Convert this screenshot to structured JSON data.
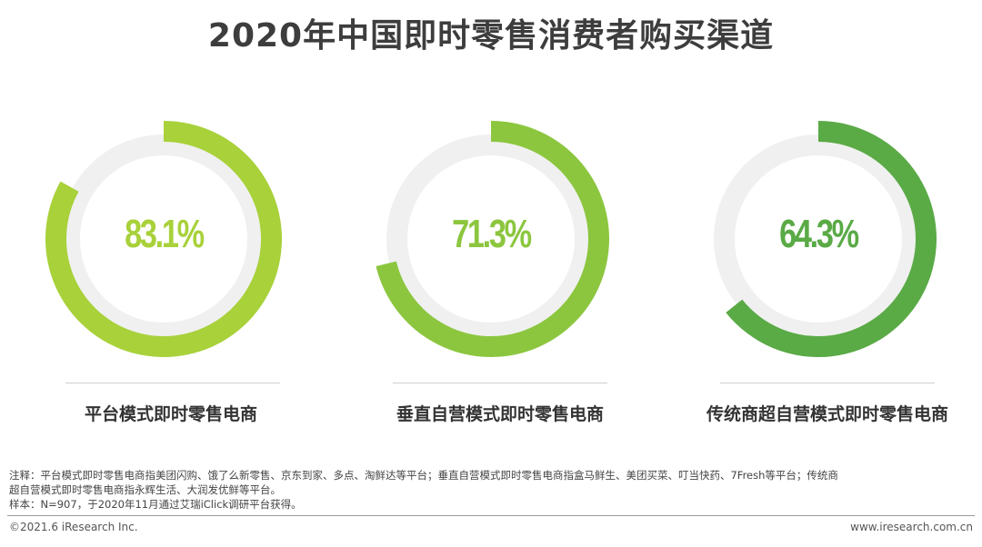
{
  "chart_data": {
    "type": "pie",
    "title": "2020年中国即时零售消费者购买渠道",
    "unit": "%",
    "series": [
      {
        "label": "平台模式即时零售电商",
        "value": 83.1,
        "value_label": "83.1%",
        "color": "#a8d13a"
      },
      {
        "label": "垂直自营模式即时零售电商",
        "value": 71.3,
        "value_label": "71.3%",
        "color": "#8cc63f"
      },
      {
        "label": "传统商超自营模式即时零售电商",
        "value": 64.3,
        "value_label": "64.3%",
        "color": "#5aaa46"
      }
    ],
    "track_color": "#f0f0f0"
  },
  "notes": {
    "line1": "注释：平台模式即时零售电商指美团闪购、饿了么新零售、京东到家、多点、淘鲜达等平台；垂直自营模式即时零售电商指盒马鲜生、美团买菜、叮当快药、7Fresh等平台；传统商",
    "line2": "超自营模式即时零售电商指永辉生活、大润发优鲜等平台。",
    "line3": "样本：N=907，于2020年11月通过艾瑞iClick调研平台获得。"
  },
  "footer": {
    "copyright": "©2021.6 iResearch Inc.",
    "website": "www.iresearch.com.cn"
  }
}
